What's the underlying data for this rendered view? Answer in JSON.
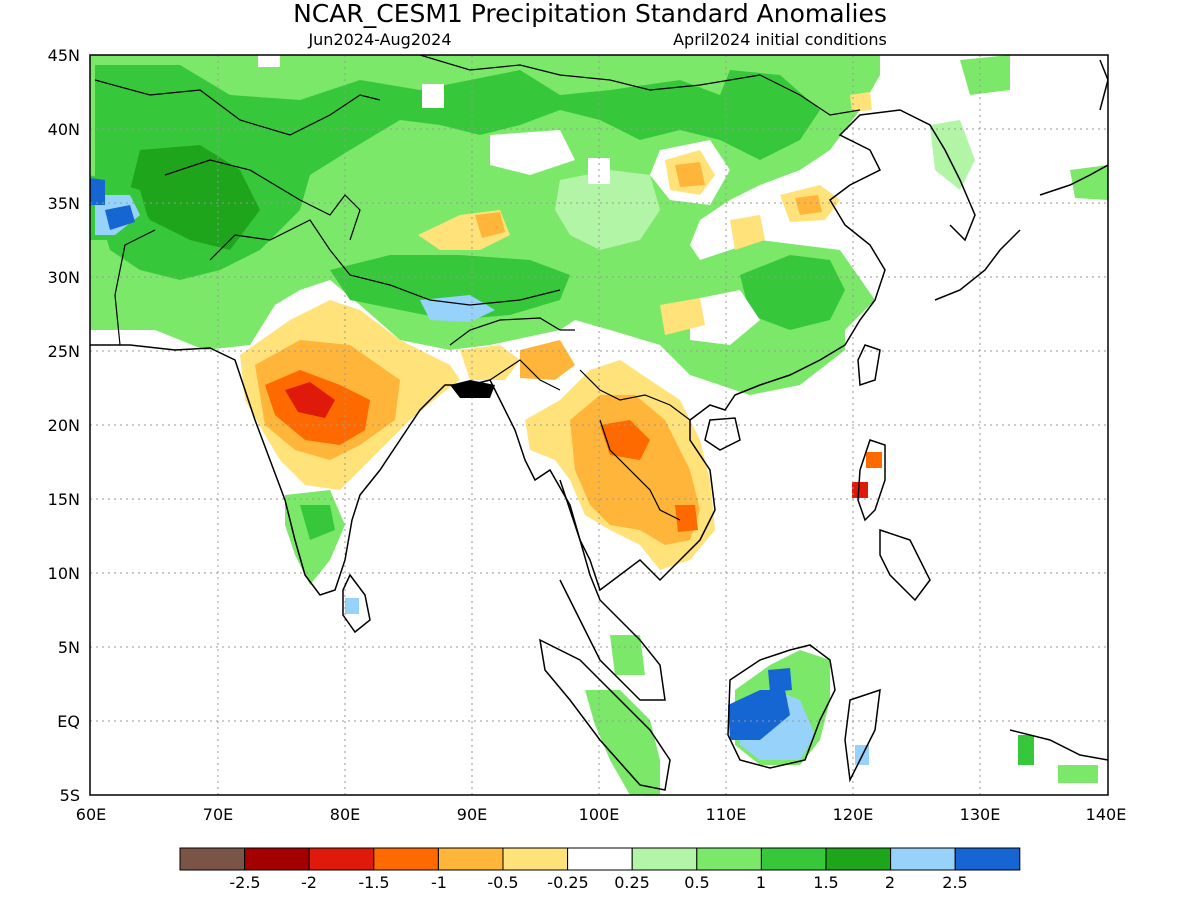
{
  "title": "NCAR_CESM1 Precipitation Standard Anomalies",
  "period": "Jun2024-Aug2024",
  "init": "April2024 initial conditions",
  "lat_labels": [
    "45N",
    "40N",
    "35N",
    "30N",
    "25N",
    "20N",
    "15N",
    "10N",
    "5N",
    "EQ",
    "5S"
  ],
  "lon_labels": [
    "60E",
    "70E",
    "80E",
    "90E",
    "100E",
    "110E",
    "120E",
    "130E",
    "140E"
  ],
  "colorbar": {
    "colors": [
      "#7a5446",
      "#a50000",
      "#e01a0a",
      "#ff6a00",
      "#ffb53a",
      "#ffe27a",
      "#ffffff",
      "#b2f5a6",
      "#7ce86a",
      "#36c83a",
      "#1ea51c",
      "#96d2fa",
      "#1565d2"
    ],
    "labels": [
      "-2.5",
      "-2",
      "-1.5",
      "-1",
      "-0.5",
      "-0.25",
      "0.25",
      "0.5",
      "1",
      "1.5",
      "2",
      "2.5"
    ]
  },
  "colors": {
    "dry_strong": "#e01a0a",
    "dry_moderate": "#ff6a00",
    "dry_light": "#ffb53a",
    "dry_weak": "#ffe27a",
    "wet_weak": "#b2f5a6",
    "wet_light": "#7ce86a",
    "wet_moderate": "#36c83a",
    "wet_strong": "#1ea51c",
    "wet_very_strong": "#96d2fa",
    "wet_extreme": "#1565d2"
  }
}
